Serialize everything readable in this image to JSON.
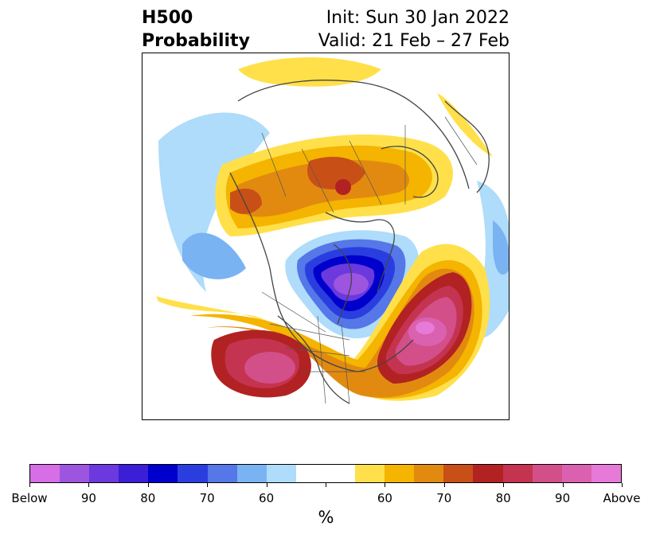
{
  "header": {
    "title_line1": "H500",
    "title_line2": "Probability",
    "init": "Init: Sun 30 Jan 2022",
    "valid": "Valid: 21 Feb – 27 Feb"
  },
  "colorbar": {
    "colors": [
      "#d66ee6",
      "#9d55e0",
      "#6b39de",
      "#3a1fd6",
      "#0000cc",
      "#2a3ee0",
      "#5577e8",
      "#7ab3f2",
      "#aedcfa",
      "#ffffff",
      "#ffffff",
      "#ffe04a",
      "#f4b400",
      "#e28a10",
      "#c85016",
      "#b22222",
      "#c43350",
      "#d24f89",
      "#da61b0",
      "#e77ad8"
    ],
    "labels": [
      "Below",
      "90",
      "80",
      "70",
      "60",
      "60",
      "70",
      "80",
      "90",
      "Above"
    ],
    "unit": "%"
  },
  "map": {
    "description_colors": {
      "warm_low": "#ffe04a",
      "warm_mid": "#f4b400",
      "warm_high": "#e28a10",
      "cold_low": "#aedcfa",
      "cold_mid": "#7ab3f2"
    }
  }
}
